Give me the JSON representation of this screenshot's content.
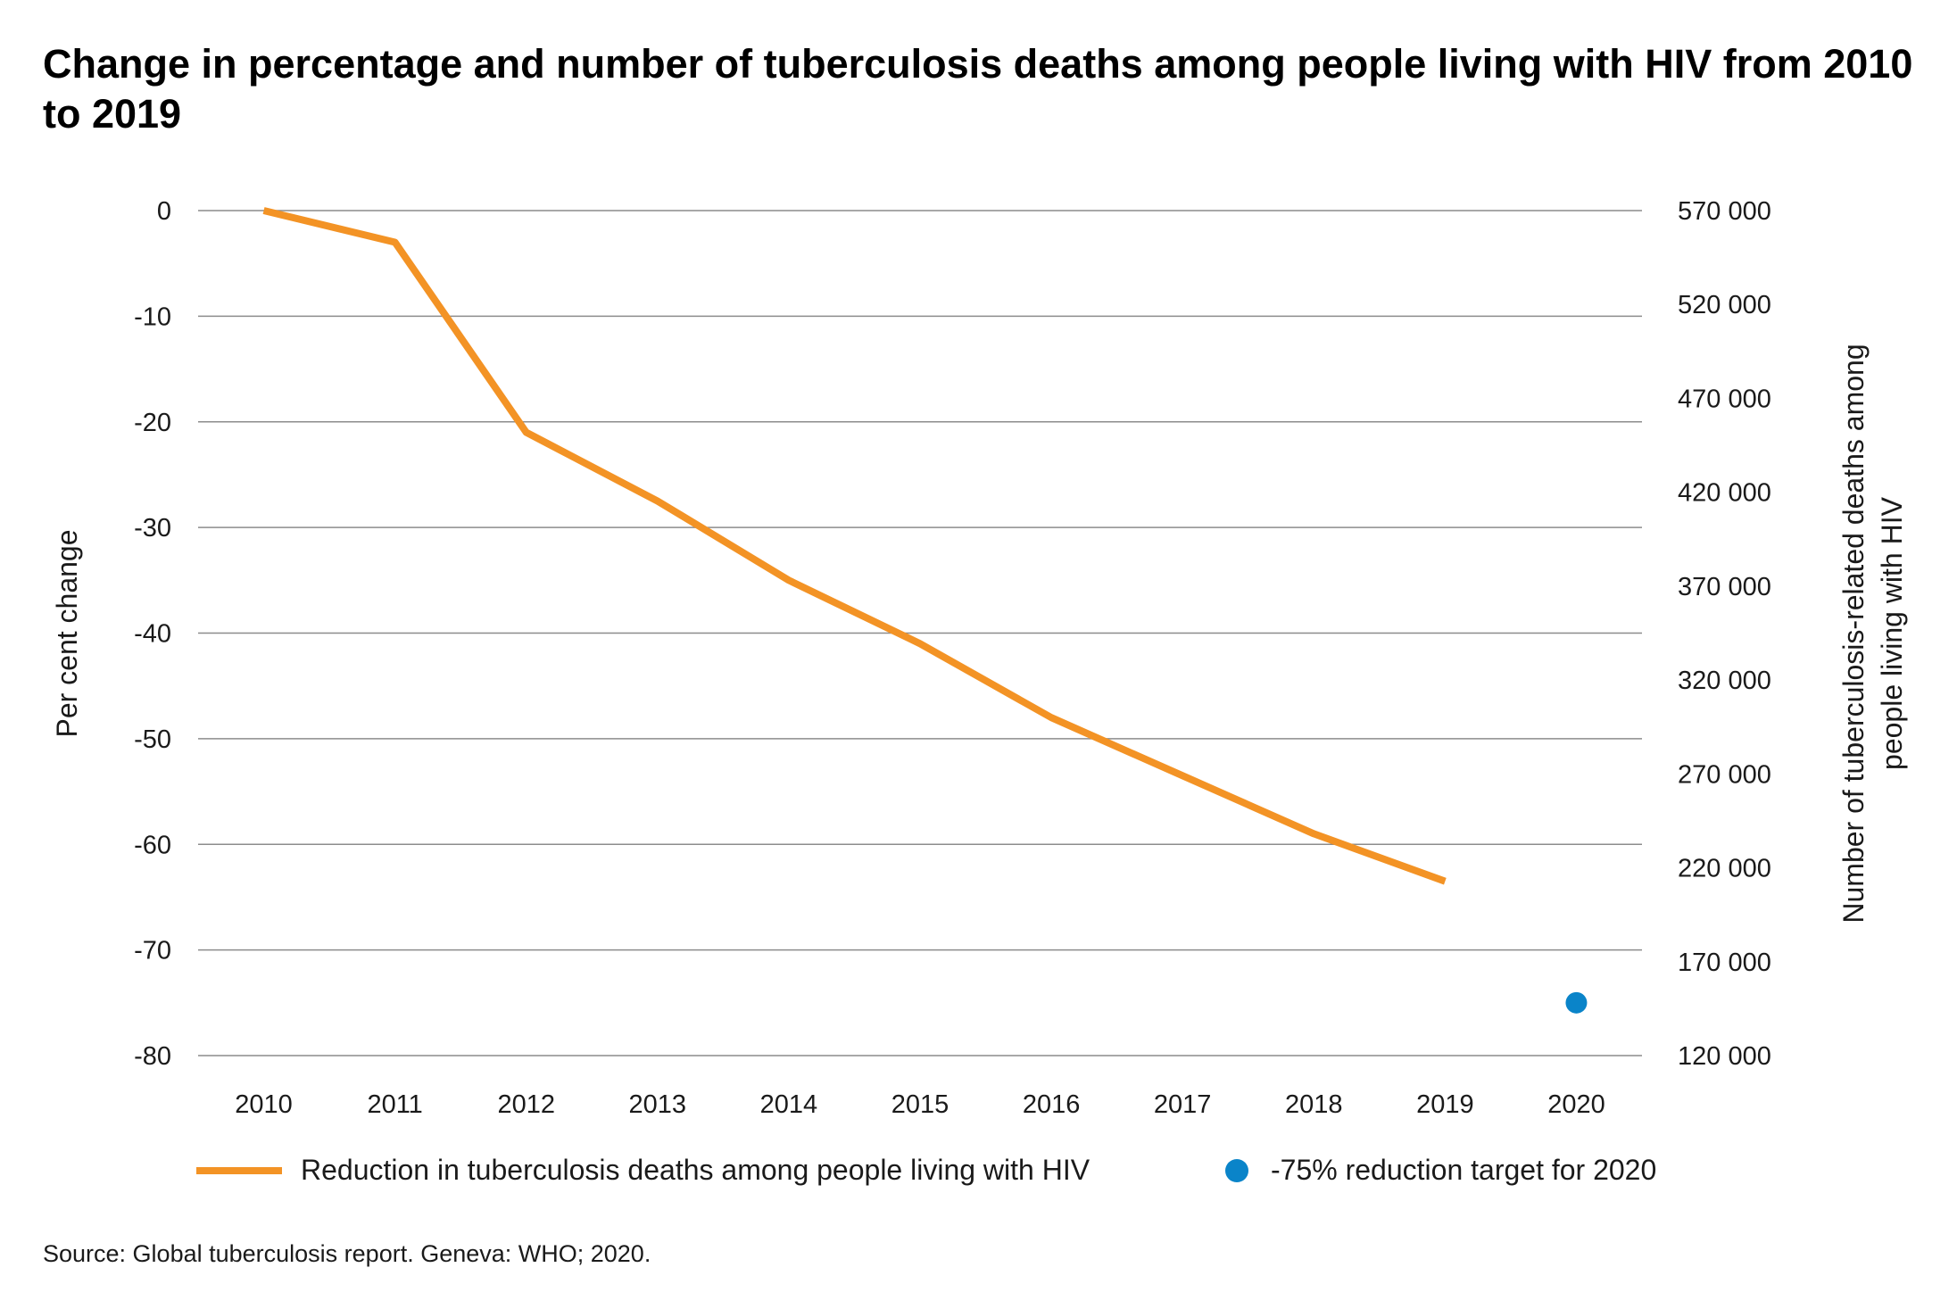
{
  "chart_data": {
    "type": "line",
    "title": "Change in percentage and number of tuberculosis deaths among people living with HIV from 2010 to 2019",
    "categories": [
      "2010",
      "2011",
      "2012",
      "2013",
      "2014",
      "2015",
      "2016",
      "2017",
      "2018",
      "2019",
      "2020"
    ],
    "ylabel": "Per cent change",
    "y2label": "Number of tuberculosis-related deaths among people living with HIV",
    "ylim": [
      -80,
      0
    ],
    "yticks": [
      "0",
      "-10",
      "-20",
      "-30",
      "-40",
      "-50",
      "-60",
      "-70",
      "-80"
    ],
    "y2lim": [
      120000,
      570000
    ],
    "y2ticks": [
      "570 000",
      "520 000",
      "470 000",
      "420 000",
      "370 000",
      "320 000",
      "270 000",
      "220 000",
      "170 000",
      "120 000"
    ],
    "grid": true,
    "legend_position": "bottom",
    "series": [
      {
        "name": "Reduction in tuberculosis deaths among people living with HIV",
        "type": "line",
        "color": "#F39325",
        "x": [
          "2010",
          "2011",
          "2012",
          "2013",
          "2014",
          "2015",
          "2016",
          "2017",
          "2018",
          "2019"
        ],
        "values": [
          0,
          -3,
          -21,
          -27.5,
          -35,
          -41,
          -48,
          -53.5,
          -59,
          -63.5
        ]
      },
      {
        "name": "-75% reduction target for 2020",
        "type": "scatter",
        "color": "#0A84C9",
        "x": [
          "2020"
        ],
        "values": [
          -75
        ]
      }
    ]
  },
  "source": "Source: Global tuberculosis report. Geneva: WHO; 2020."
}
